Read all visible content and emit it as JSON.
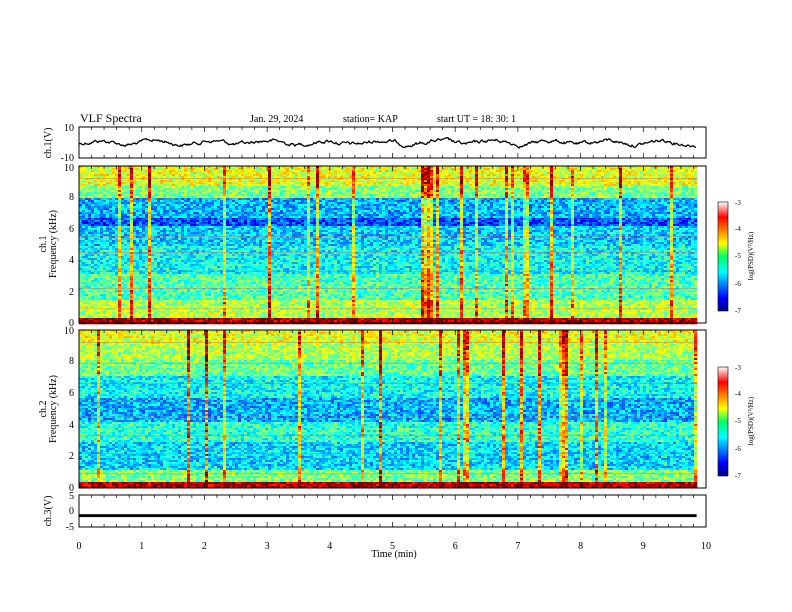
{
  "header": {
    "title": "VLF Spectra",
    "date": "Jan. 29, 2024",
    "station": "station= KAP",
    "start": "start  UT  =   18: 30: 1"
  },
  "chart_data": [
    {
      "type": "line",
      "ylabel": "ch.1(V)",
      "ylim": [
        -10,
        10
      ],
      "yticks": [
        "10",
        "-10"
      ],
      "xlim": [
        0,
        10
      ],
      "series_color": "#000000"
    },
    {
      "type": "heatmap",
      "ylabel_line1": "ch.1",
      "ylabel_line2": "Frequency (kHz)",
      "ylim": [
        0,
        10
      ],
      "yticks": [
        "0",
        "2",
        "4",
        "6",
        "8",
        "10"
      ],
      "xlim": [
        0,
        10
      ],
      "data_end_min": 9.85,
      "colorbar": {
        "label": "log(PSD)(V²/Hz)",
        "range": [
          -7,
          -3
        ],
        "ticks": [
          "-3",
          "-4",
          "-5",
          "-6",
          "-7"
        ]
      }
    },
    {
      "type": "heatmap",
      "ylabel_line1": "ch.2",
      "ylabel_line2": "Frequency (kHz)",
      "ylim": [
        0,
        10
      ],
      "yticks": [
        "0",
        "2",
        "4",
        "6",
        "8",
        "10"
      ],
      "xlim": [
        0,
        10
      ],
      "data_end_min": 9.85,
      "colorbar": {
        "label": "log(PSD)(V²/Hz)",
        "range": [
          -7,
          -3
        ],
        "ticks": [
          "-3",
          "-4",
          "-5",
          "-6",
          "-7"
        ]
      }
    },
    {
      "type": "line",
      "ylabel": "ch.3(V)",
      "ylim": [
        -5,
        5
      ],
      "yticks": [
        "5",
        "0",
        "-5"
      ],
      "xlim": [
        0,
        10
      ],
      "series_color": "#000000"
    }
  ],
  "xaxis": {
    "label": "Time (min)",
    "ticks": [
      "0",
      "1",
      "2",
      "3",
      "4",
      "5",
      "6",
      "7",
      "8",
      "9",
      "10"
    ]
  }
}
